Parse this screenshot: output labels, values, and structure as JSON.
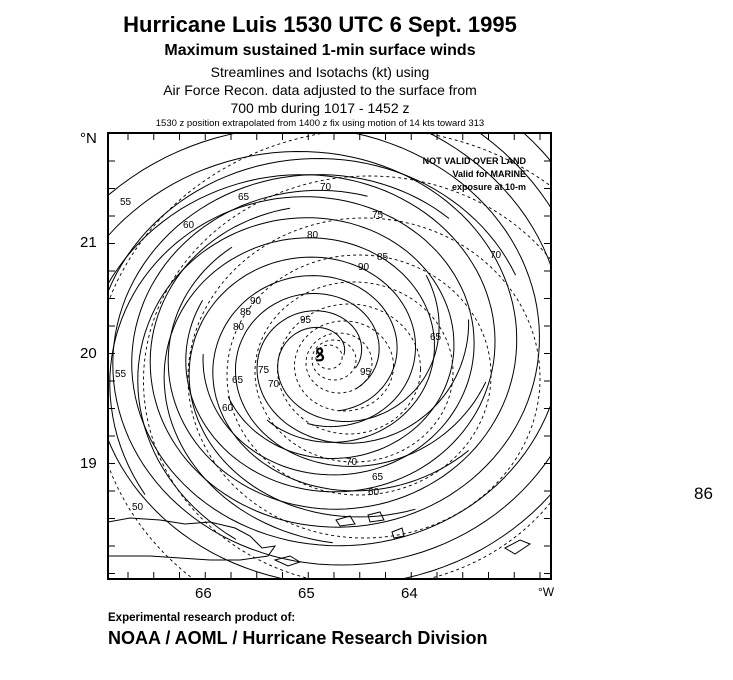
{
  "header": {
    "title": "Hurricane Luis 1530 UTC  6 Sept. 1995",
    "subtitle": "Maximum sustained 1-min surface winds",
    "line2": "Streamlines and Isotachs (kt) using",
    "line3": "Air Force Recon. data adjusted to the surface from",
    "line4": "700 mb during 1017 - 1452 z",
    "note": "1530 z position extrapolated from 1400 z fix using motion of 14 kts toward 313"
  },
  "map": {
    "lat_unit": "°N",
    "lon_unit": "°W",
    "lat_labels": [
      "21",
      "20",
      "19"
    ],
    "lon_labels": [
      "66",
      "65",
      "64"
    ],
    "warning": [
      "NOT VALID OVER LAND",
      "Valid for MARINE",
      "exposure at 10-m"
    ],
    "isotach_labels": [
      "55",
      "60",
      "65",
      "70",
      "75",
      "80",
      "85",
      "90",
      "95",
      "50",
      "65",
      "70",
      "75",
      "80",
      "85",
      "90",
      "95",
      "70",
      "65",
      "60",
      "55",
      "60",
      "70",
      "65"
    ],
    "storm_symbol": "hurricane-symbol"
  },
  "side_number": "86",
  "footer": {
    "experimental": "Experimental research product of:",
    "org": "NOAA / AOML / Hurricane Research Division"
  }
}
